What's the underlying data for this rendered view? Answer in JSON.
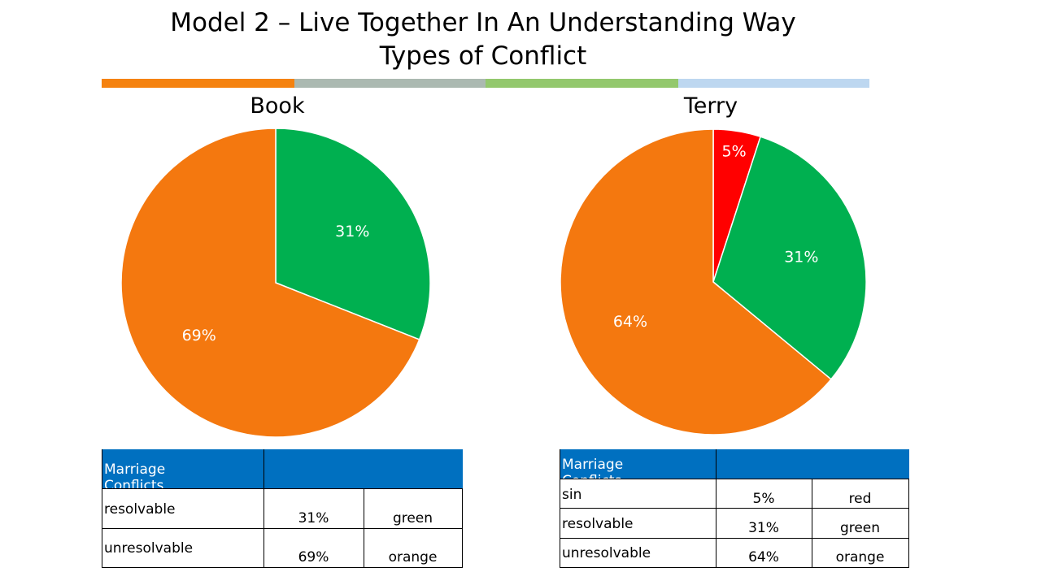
{
  "header": {
    "title_line1": "Model 2 – Live Together In An Understanding Way",
    "title_line2": "Types of Conflict",
    "band_colors": [
      "#f5820f",
      "#abb9b1",
      "#93c86d",
      "#bdd7f0"
    ]
  },
  "chart_data": [
    {
      "type": "pie",
      "title": "Book",
      "slices": [
        {
          "value": 31,
          "label": "31%",
          "color": "#00b050"
        },
        {
          "value": 69,
          "label": "69%",
          "color": "#f4780f"
        }
      ]
    },
    {
      "type": "pie",
      "title": "Terry",
      "slices": [
        {
          "value": 5,
          "label": "5%",
          "color": "#ff0000"
        },
        {
          "value": 31,
          "label": "31%",
          "color": "#00b050"
        },
        {
          "value": 64,
          "label": "64%",
          "color": "#f4780f"
        }
      ]
    }
  ],
  "tables": {
    "book": {
      "header": "Marriage Conflicts",
      "rows": [
        {
          "name": "resolvable",
          "percent": "31%",
          "color": "green"
        },
        {
          "name": "unresolvable",
          "percent": "69%",
          "color": "orange"
        }
      ]
    },
    "terry": {
      "header": "Marriage Conflicts",
      "rows": [
        {
          "name": "sin",
          "percent": "5%",
          "color": "red"
        },
        {
          "name": "resolvable",
          "percent": "31%",
          "color": "green"
        },
        {
          "name": "unresolvable",
          "percent": "64%",
          "color": "orange"
        }
      ]
    }
  }
}
